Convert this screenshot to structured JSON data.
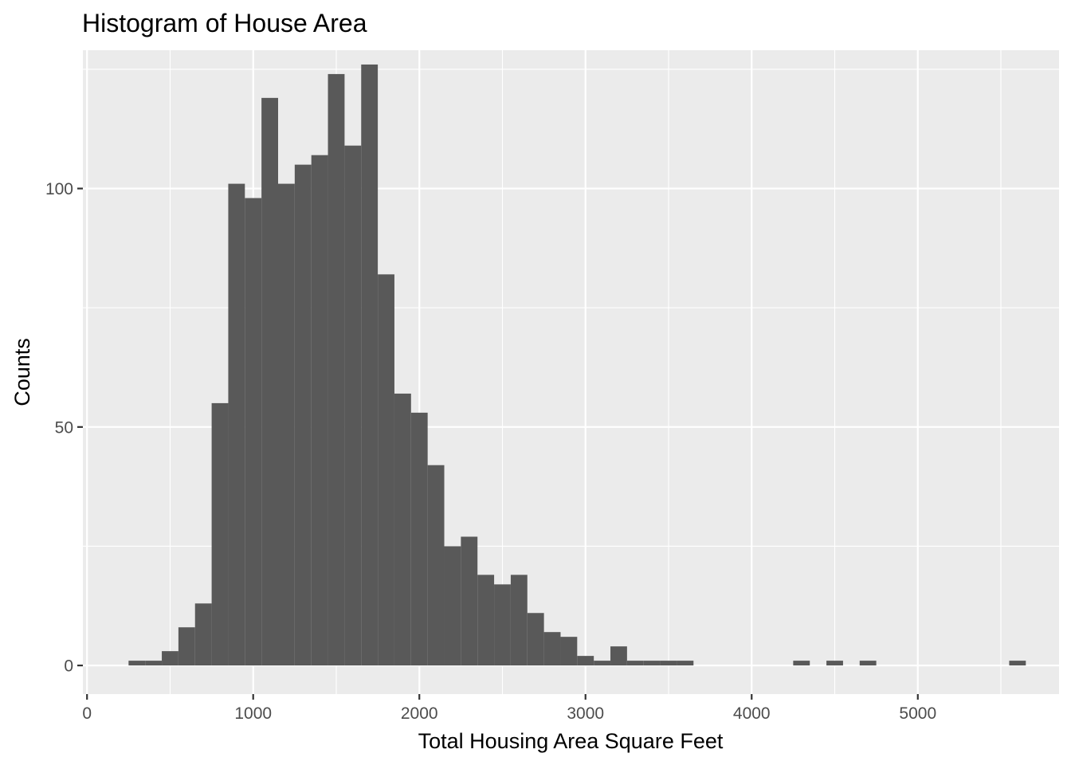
{
  "chart_data": {
    "type": "bar",
    "title": "Histogram of House Area",
    "xlabel": "Total Housing Area Square Feet",
    "ylabel": "Counts",
    "xlim": [
      -25,
      5850
    ],
    "ylim": [
      -6,
      129
    ],
    "x_ticks": [
      0,
      1000,
      2000,
      3000,
      4000,
      5000
    ],
    "y_ticks": [
      0,
      50,
      100
    ],
    "grid": true,
    "background": "#ebebeb",
    "bar_color": "#595959",
    "bin_width": 100,
    "bins": [
      {
        "start": 250,
        "end": 350,
        "count": 1
      },
      {
        "start": 350,
        "end": 450,
        "count": 1
      },
      {
        "start": 450,
        "end": 550,
        "count": 3
      },
      {
        "start": 550,
        "end": 650,
        "count": 8
      },
      {
        "start": 650,
        "end": 750,
        "count": 13
      },
      {
        "start": 750,
        "end": 850,
        "count": 55
      },
      {
        "start": 850,
        "end": 950,
        "count": 101
      },
      {
        "start": 950,
        "end": 1050,
        "count": 98
      },
      {
        "start": 1050,
        "end": 1150,
        "count": 119
      },
      {
        "start": 1150,
        "end": 1250,
        "count": 101
      },
      {
        "start": 1250,
        "end": 1350,
        "count": 105
      },
      {
        "start": 1350,
        "end": 1450,
        "count": 107
      },
      {
        "start": 1450,
        "end": 1550,
        "count": 124
      },
      {
        "start": 1550,
        "end": 1650,
        "count": 109
      },
      {
        "start": 1650,
        "end": 1750,
        "count": 126
      },
      {
        "start": 1750,
        "end": 1850,
        "count": 82
      },
      {
        "start": 1850,
        "end": 1950,
        "count": 57
      },
      {
        "start": 1950,
        "end": 2050,
        "count": 53
      },
      {
        "start": 2050,
        "end": 2150,
        "count": 42
      },
      {
        "start": 2150,
        "end": 2250,
        "count": 25
      },
      {
        "start": 2250,
        "end": 2350,
        "count": 27
      },
      {
        "start": 2350,
        "end": 2450,
        "count": 19
      },
      {
        "start": 2450,
        "end": 2550,
        "count": 17
      },
      {
        "start": 2550,
        "end": 2650,
        "count": 19
      },
      {
        "start": 2650,
        "end": 2750,
        "count": 11
      },
      {
        "start": 2750,
        "end": 2850,
        "count": 7
      },
      {
        "start": 2850,
        "end": 2950,
        "count": 6
      },
      {
        "start": 2950,
        "end": 3050,
        "count": 2
      },
      {
        "start": 3050,
        "end": 3150,
        "count": 1
      },
      {
        "start": 3150,
        "end": 3250,
        "count": 4
      },
      {
        "start": 3250,
        "end": 3350,
        "count": 1
      },
      {
        "start": 3350,
        "end": 3450,
        "count": 1
      },
      {
        "start": 3450,
        "end": 3550,
        "count": 1
      },
      {
        "start": 3550,
        "end": 3650,
        "count": 1
      },
      {
        "start": 4250,
        "end": 4350,
        "count": 1
      },
      {
        "start": 4450,
        "end": 4550,
        "count": 1
      },
      {
        "start": 4650,
        "end": 4750,
        "count": 1
      },
      {
        "start": 5550,
        "end": 5650,
        "count": 1
      }
    ]
  }
}
